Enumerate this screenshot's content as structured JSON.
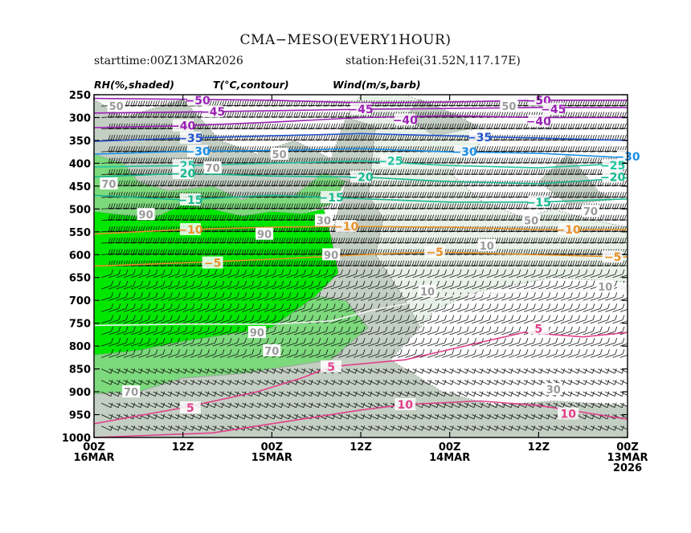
{
  "chart_data": {
    "type": "heatmap",
    "title": "CMA−MESO(EVERY1HOUR)",
    "subtitle_left": "starttime:00Z13MAR2026",
    "subtitle_right": "station:Hefei(31.52N,117.17E)",
    "legend_labels": [
      "RH(%,shaded)",
      "T(°C,contour)",
      "Wind(m/s,barb)"
    ],
    "y_axis": {
      "levels_hpa": [
        250,
        300,
        350,
        400,
        450,
        500,
        550,
        600,
        650,
        700,
        750,
        800,
        850,
        900,
        950,
        1000
      ],
      "ylim": [
        250,
        1000
      ]
    },
    "x_axis": {
      "direction": "reversed",
      "hours_range": [
        0,
        72
      ],
      "ticks": [
        {
          "hour": 72,
          "line1": "00Z",
          "line2": "16MAR",
          "line3": ""
        },
        {
          "hour": 60,
          "line1": "12Z",
          "line2": "",
          "line3": ""
        },
        {
          "hour": 48,
          "line1": "00Z",
          "line2": "15MAR",
          "line3": ""
        },
        {
          "hour": 36,
          "line1": "12Z",
          "line2": "",
          "line3": ""
        },
        {
          "hour": 24,
          "line1": "00Z",
          "line2": "14MAR",
          "line3": ""
        },
        {
          "hour": 12,
          "line1": "12Z",
          "line2": "",
          "line3": ""
        },
        {
          "hour": 0,
          "line1": "00Z",
          "line2": "13MAR",
          "line3": "2026"
        }
      ]
    },
    "rh_shading_colors": {
      "gt90": "#00e600",
      "70_90": "#7cd97c",
      "50_70": "#c4cfc4",
      "30_50": "#e8f2e8",
      "lt30": "#ffffff"
    },
    "rh_regions": [
      {
        "class": "gt90",
        "pts": [
          [
            72,
            505
          ],
          [
            64,
            520
          ],
          [
            60,
            490
          ],
          [
            56,
            500
          ],
          [
            52,
            515
          ],
          [
            48,
            505
          ],
          [
            44,
            510
          ],
          [
            41,
            500
          ],
          [
            40,
            560
          ],
          [
            39,
            640
          ],
          [
            42,
            690
          ],
          [
            48,
            760
          ],
          [
            60,
            790
          ],
          [
            66,
            810
          ],
          [
            72,
            820
          ]
        ]
      },
      {
        "class": "70_90",
        "pts": [
          [
            72,
            820
          ],
          [
            66,
            810
          ],
          [
            60,
            790
          ],
          [
            48,
            760
          ],
          [
            42,
            690
          ],
          [
            38,
            700
          ],
          [
            35,
            760
          ],
          [
            40,
            830
          ],
          [
            52,
            860
          ],
          [
            60,
            870
          ],
          [
            66,
            900
          ],
          [
            72,
            905
          ]
        ]
      },
      {
        "class": "70_90",
        "pts": [
          [
            72,
            380
          ],
          [
            68,
            400
          ],
          [
            66,
            440
          ],
          [
            62,
            460
          ],
          [
            56,
            450
          ],
          [
            52,
            480
          ],
          [
            50,
            470
          ],
          [
            45,
            470
          ],
          [
            41,
            420
          ],
          [
            38,
            440
          ],
          [
            40,
            490
          ],
          [
            44,
            510
          ],
          [
            48,
            505
          ],
          [
            52,
            515
          ],
          [
            56,
            500
          ],
          [
            60,
            490
          ],
          [
            64,
            520
          ],
          [
            72,
            505
          ]
        ]
      },
      {
        "class": "50_70",
        "pts": [
          [
            72,
            260
          ],
          [
            68,
            300
          ],
          [
            60,
            260
          ],
          [
            55,
            350
          ],
          [
            50,
            380
          ],
          [
            45,
            350
          ],
          [
            40,
            390
          ],
          [
            38,
            300
          ],
          [
            34,
            320
          ],
          [
            35,
            470
          ],
          [
            33,
            520
          ],
          [
            34,
            600
          ],
          [
            30,
            700
          ],
          [
            28,
            760
          ],
          [
            32,
            830
          ],
          [
            28,
            870
          ],
          [
            25,
            900
          ],
          [
            18,
            930
          ],
          [
            10,
            920
          ],
          [
            0,
            930
          ],
          [
            0,
            1000
          ],
          [
            72,
            1000
          ],
          [
            72,
            905
          ],
          [
            66,
            900
          ],
          [
            60,
            870
          ],
          [
            52,
            860
          ],
          [
            40,
            830
          ],
          [
            35,
            760
          ],
          [
            38,
            700
          ],
          [
            42,
            690
          ],
          [
            39,
            640
          ],
          [
            40,
            560
          ],
          [
            38,
            440
          ],
          [
            41,
            420
          ],
          [
            45,
            470
          ],
          [
            50,
            470
          ],
          [
            52,
            480
          ],
          [
            56,
            450
          ],
          [
            62,
            460
          ],
          [
            66,
            440
          ],
          [
            68,
            400
          ],
          [
            72,
            380
          ]
        ]
      },
      {
        "class": "30_50",
        "pts": [
          [
            30,
            250
          ],
          [
            22,
            300
          ],
          [
            20,
            360
          ],
          [
            24,
            420
          ],
          [
            20,
            480
          ],
          [
            14,
            520
          ],
          [
            10,
            500
          ],
          [
            6,
            520
          ],
          [
            0,
            540
          ],
          [
            0,
            660
          ],
          [
            10,
            650
          ],
          [
            20,
            680
          ],
          [
            26,
            720
          ],
          [
            28,
            760
          ],
          [
            30,
            700
          ],
          [
            34,
            600
          ],
          [
            33,
            520
          ],
          [
            35,
            470
          ],
          [
            34,
            320
          ],
          [
            38,
            300
          ],
          [
            36,
            250
          ]
        ]
      },
      {
        "class": "50_70",
        "pts": [
          [
            28,
            260
          ],
          [
            24,
            290
          ],
          [
            20,
            320
          ],
          [
            26,
            340
          ],
          [
            30,
            300
          ]
        ]
      },
      {
        "class": "50_70",
        "pts": [
          [
            8,
            380
          ],
          [
            6,
            420
          ],
          [
            4,
            460
          ],
          [
            2,
            480
          ],
          [
            8,
            490
          ],
          [
            12,
            440
          ]
        ]
      }
    ],
    "temperature_contours": [
      {
        "value": -50,
        "label_at": [
          [
            58,
            262
          ],
          [
            12,
            262
          ]
        ],
        "color": "#9a22b4",
        "pts": [
          [
            72,
            258
          ],
          [
            60,
            260
          ],
          [
            48,
            262
          ],
          [
            36,
            268
          ],
          [
            24,
            266
          ],
          [
            12,
            262
          ],
          [
            0,
            262
          ]
        ]
      },
      {
        "value": -45,
        "label_at": [
          [
            56,
            287
          ],
          [
            36,
            282
          ],
          [
            10,
            282
          ]
        ],
        "color": "#9a22b4",
        "pts": [
          [
            72,
            290
          ],
          [
            60,
            288
          ],
          [
            48,
            285
          ],
          [
            36,
            282
          ],
          [
            24,
            280
          ],
          [
            12,
            278
          ],
          [
            0,
            278
          ]
        ]
      },
      {
        "value": -40,
        "label_at": [
          [
            60,
            318
          ],
          [
            30,
            305
          ],
          [
            12,
            308
          ]
        ],
        "color": "#9a22b4",
        "pts": [
          [
            72,
            322
          ],
          [
            60,
            318
          ],
          [
            48,
            310
          ],
          [
            36,
            300
          ],
          [
            24,
            296
          ],
          [
            12,
            300
          ],
          [
            0,
            300
          ]
        ]
      },
      {
        "value": -35,
        "label_at": [
          [
            59,
            345
          ],
          [
            20,
            343
          ]
        ],
        "color": "#2255cc",
        "pts": [
          [
            72,
            352
          ],
          [
            60,
            345
          ],
          [
            48,
            340
          ],
          [
            36,
            335
          ],
          [
            24,
            340
          ],
          [
            12,
            345
          ],
          [
            0,
            350
          ]
        ]
      },
      {
        "value": -30,
        "label_at": [
          [
            58,
            374
          ],
          [
            22,
            375
          ],
          [
            0,
            385
          ]
        ],
        "color": "#1a8fe6",
        "pts": [
          [
            72,
            380
          ],
          [
            60,
            374
          ],
          [
            48,
            372
          ],
          [
            36,
            368
          ],
          [
            24,
            375
          ],
          [
            12,
            378
          ],
          [
            0,
            388
          ]
        ]
      },
      {
        "value": -25,
        "label_at": [
          [
            60,
            405
          ],
          [
            32,
            395
          ],
          [
            2,
            405
          ]
        ],
        "color": "#22c4a0",
        "pts": [
          [
            72,
            408
          ],
          [
            60,
            405
          ],
          [
            48,
            400
          ],
          [
            36,
            395
          ],
          [
            24,
            405
          ],
          [
            12,
            410
          ],
          [
            0,
            400
          ]
        ]
      },
      {
        "value": -20,
        "label_at": [
          [
            60,
            422
          ],
          [
            36,
            430
          ],
          [
            2,
            430
          ]
        ],
        "color": "#18b890",
        "pts": [
          [
            72,
            430
          ],
          [
            60,
            422
          ],
          [
            48,
            428
          ],
          [
            36,
            430
          ],
          [
            24,
            440
          ],
          [
            12,
            445
          ],
          [
            0,
            432
          ]
        ]
      },
      {
        "value": -15,
        "label_at": [
          [
            59,
            480
          ],
          [
            40,
            475
          ],
          [
            12,
            485
          ]
        ],
        "color": "#18b890",
        "pts": [
          [
            72,
            470
          ],
          [
            60,
            480
          ],
          [
            48,
            470
          ],
          [
            40,
            475
          ],
          [
            24,
            485
          ],
          [
            12,
            485
          ],
          [
            0,
            478
          ]
        ]
      },
      {
        "value": -10,
        "label_at": [
          [
            59,
            545
          ],
          [
            38,
            538
          ],
          [
            8,
            545
          ]
        ],
        "color": "#e8922a",
        "pts": [
          [
            72,
            555
          ],
          [
            60,
            545
          ],
          [
            48,
            540
          ],
          [
            38,
            538
          ],
          [
            24,
            540
          ],
          [
            12,
            545
          ],
          [
            0,
            545
          ]
        ]
      },
      {
        "value": -5,
        "label_at": [
          [
            56,
            618
          ],
          [
            26,
            594
          ],
          [
            2,
            605
          ]
        ],
        "color": "#e8922a",
        "pts": [
          [
            72,
            625
          ],
          [
            60,
            618
          ],
          [
            48,
            610
          ],
          [
            36,
            600
          ],
          [
            26,
            594
          ],
          [
            12,
            600
          ],
          [
            0,
            605
          ]
        ]
      },
      {
        "value": 0,
        "label_at": [
          [
            0,
            675
          ]
        ],
        "color": "#f0f0f0",
        "pts": [
          [
            72,
            755
          ],
          [
            60,
            752
          ],
          [
            48,
            752
          ],
          [
            40,
            745
          ],
          [
            34,
            720
          ],
          [
            24,
            690
          ],
          [
            12,
            680
          ],
          [
            0,
            676
          ]
        ]
      },
      {
        "value": 5,
        "label_at": [
          [
            59,
            935
          ],
          [
            40,
            845
          ],
          [
            12,
            762
          ]
        ],
        "color": "#e0408a",
        "pts": [
          [
            72,
            970
          ],
          [
            60,
            935
          ],
          [
            50,
            900
          ],
          [
            44,
            870
          ],
          [
            40,
            845
          ],
          [
            30,
            830
          ],
          [
            22,
            800
          ],
          [
            14,
            770
          ],
          [
            6,
            780
          ],
          [
            0,
            770
          ]
        ]
      },
      {
        "value": 10,
        "label_at": [
          [
            30,
            928
          ],
          [
            8,
            948
          ]
        ],
        "color": "#e0408a",
        "pts": [
          [
            72,
            1000
          ],
          [
            56,
            990
          ],
          [
            44,
            960
          ],
          [
            36,
            940
          ],
          [
            30,
            928
          ],
          [
            20,
            920
          ],
          [
            12,
            930
          ],
          [
            4,
            950
          ],
          [
            0,
            960
          ]
        ]
      }
    ],
    "rh_labels": [
      {
        "text": "50",
        "at": [
          69,
          275
        ]
      },
      {
        "text": "70",
        "at": [
          70,
          445
        ]
      },
      {
        "text": "90",
        "at": [
          65,
          512
        ]
      },
      {
        "text": "70",
        "at": [
          56,
          410
        ]
      },
      {
        "text": "50",
        "at": [
          47,
          380
        ]
      },
      {
        "text": "90",
        "at": [
          49,
          555
        ]
      },
      {
        "text": "90",
        "at": [
          40,
          600
        ]
      },
      {
        "text": "90",
        "at": [
          50,
          770
        ]
      },
      {
        "text": "70",
        "at": [
          48,
          810
        ]
      },
      {
        "text": "70",
        "at": [
          67,
          900
        ]
      },
      {
        "text": "30",
        "at": [
          41,
          525
        ]
      },
      {
        "text": "10",
        "at": [
          19,
          580
        ]
      },
      {
        "text": "10",
        "at": [
          27,
          680
        ]
      },
      {
        "text": "30",
        "at": [
          10,
          895
        ]
      },
      {
        "text": "50",
        "at": [
          16,
          275
        ]
      },
      {
        "text": "50",
        "at": [
          13,
          525
        ]
      },
      {
        "text": "70",
        "at": [
          5,
          505
        ]
      },
      {
        "text": "10",
        "at": [
          3,
          670
        ]
      }
    ]
  }
}
